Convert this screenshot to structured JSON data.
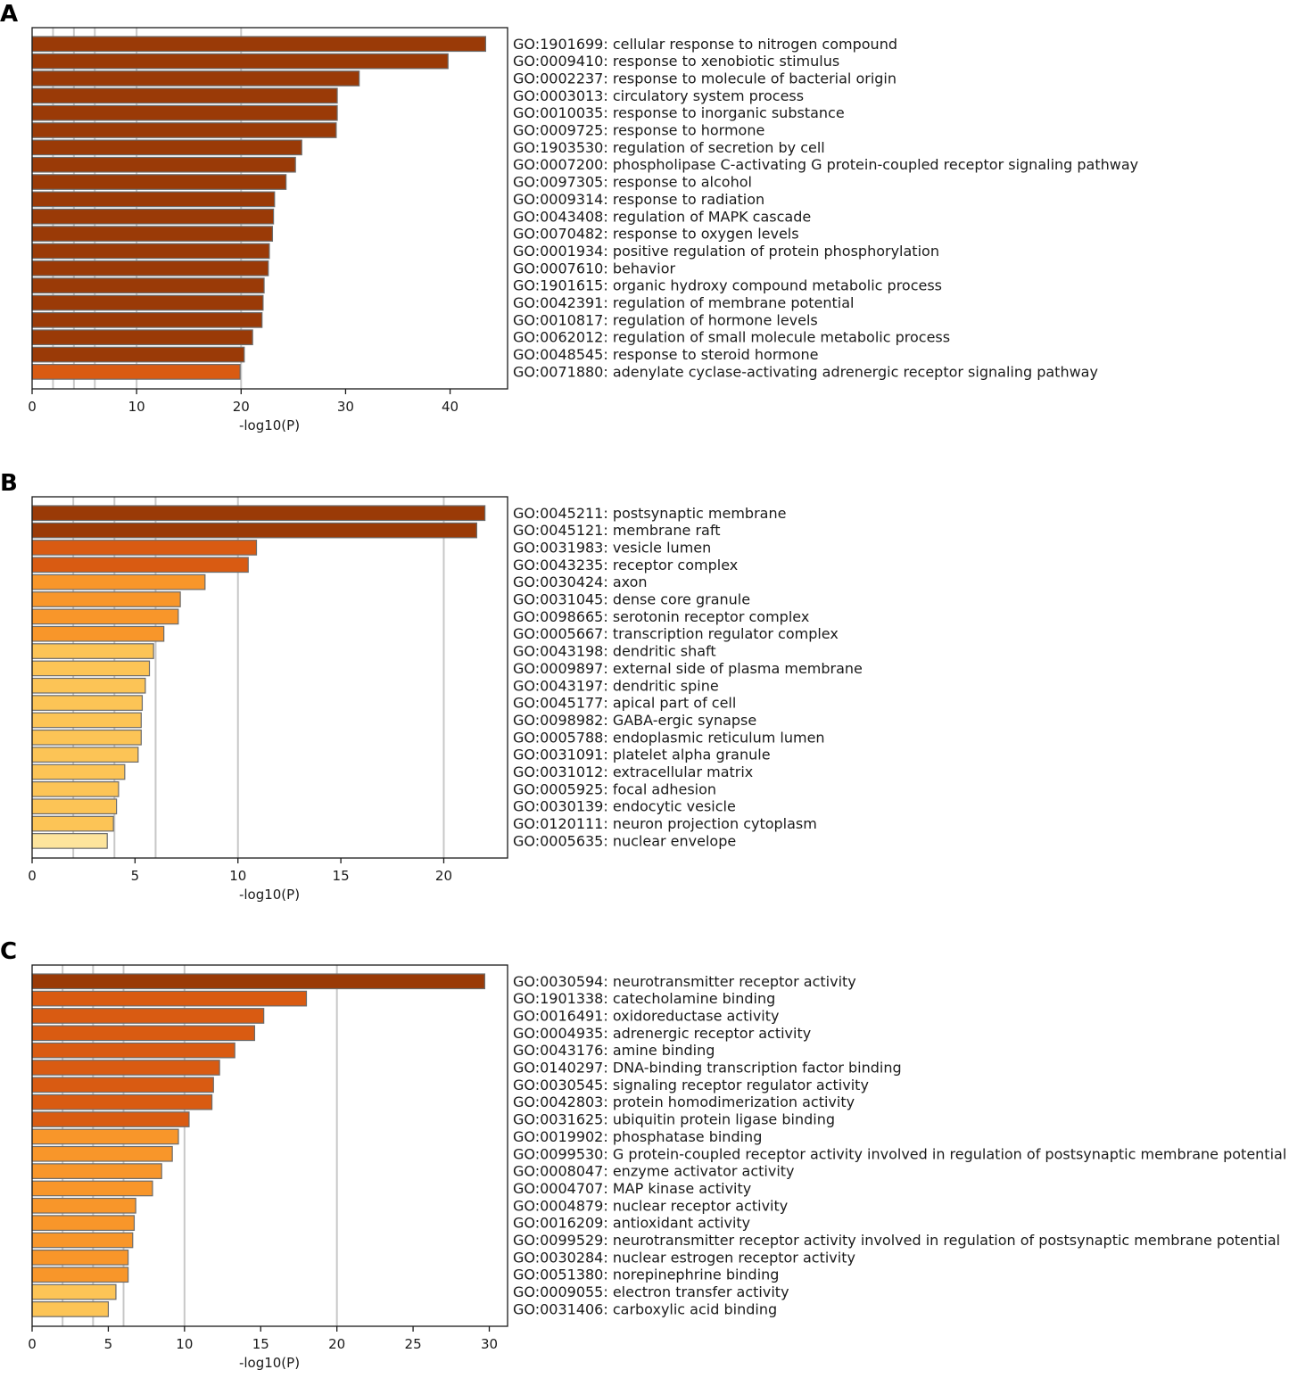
{
  "figure": {
    "xlabel": "-log10(P)",
    "color_scale": [
      "#9a3a07",
      "#d95b12",
      "#f8962a",
      "#fcc456",
      "#fde49c"
    ]
  },
  "chart_data": [
    {
      "type": "bar",
      "orientation": "horizontal",
      "panel": "A",
      "xlabel": "-log10(P)",
      "xlim": [
        0,
        45.5
      ],
      "xticks": [
        0,
        10,
        20,
        30,
        40
      ],
      "gridlines": [
        2,
        4,
        6,
        10,
        20
      ],
      "categories": [
        "GO:1901699: cellular response to nitrogen compound",
        "GO:0009410: response to xenobiotic stimulus",
        "GO:0002237: response to molecule of bacterial origin",
        "GO:0003013: circulatory system process",
        "GO:0010035: response to inorganic substance",
        "GO:0009725: response to hormone",
        "GO:1903530: regulation of secretion by cell",
        "GO:0007200: phospholipase C-activating G protein-coupled receptor signaling pathway",
        "GO:0097305: response to alcohol",
        "GO:0009314: response to radiation",
        "GO:0043408: regulation of MAPK cascade",
        "GO:0070482: response to oxygen levels",
        "GO:0001934: positive regulation of protein phosphorylation",
        "GO:0007610: behavior",
        "GO:1901615: organic hydroxy compound metabolic process",
        "GO:0042391: regulation of membrane potential",
        "GO:0010817: regulation of hormone levels",
        "GO:0062012: regulation of small molecule metabolic process",
        "GO:0048545: response to steroid hormone",
        "GO:0071880: adenylate cyclase-activating adrenergic receptor signaling pathway"
      ],
      "values": [
        43.4,
        39.8,
        31.3,
        29.2,
        29.2,
        29.1,
        25.8,
        25.2,
        24.3,
        23.2,
        23.1,
        23.0,
        22.7,
        22.6,
        22.2,
        22.1,
        22.0,
        21.1,
        20.3,
        19.9
      ],
      "colors": [
        "#9a3a07",
        "#9a3a07",
        "#9a3a07",
        "#9a3a07",
        "#9a3a07",
        "#9a3a07",
        "#9a3a07",
        "#9a3a07",
        "#9a3a07",
        "#9a3a07",
        "#9a3a07",
        "#9a3a07",
        "#9a3a07",
        "#9a3a07",
        "#9a3a07",
        "#9a3a07",
        "#9a3a07",
        "#9a3a07",
        "#9a3a07",
        "#d95b12"
      ]
    },
    {
      "type": "bar",
      "orientation": "horizontal",
      "panel": "B",
      "xlabel": "-log10(P)",
      "xlim": [
        0,
        23.1
      ],
      "xticks": [
        0,
        5,
        10,
        15,
        20
      ],
      "gridlines": [
        2,
        4,
        6,
        10,
        20
      ],
      "categories": [
        "GO:0045211: postsynaptic membrane",
        "GO:0045121: membrane raft",
        "GO:0031983: vesicle lumen",
        "GO:0043235: receptor complex",
        "GO:0030424: axon",
        "GO:0031045: dense core granule",
        "GO:0098665: serotonin receptor complex",
        "GO:0005667: transcription regulator complex",
        "GO:0043198: dendritic shaft",
        "GO:0009897: external side of plasma membrane",
        "GO:0043197: dendritic spine",
        "GO:0045177: apical part of cell",
        "GO:0098982: GABA-ergic synapse",
        "GO:0005788: endoplasmic reticulum lumen",
        "GO:0031091: platelet alpha granule",
        "GO:0031012: extracellular matrix",
        "GO:0005925: focal adhesion",
        "GO:0030139: endocytic vesicle",
        "GO:0120111: neuron projection cytoplasm",
        "GO:0005635: nuclear envelope"
      ],
      "values": [
        22.0,
        21.6,
        10.9,
        10.5,
        8.4,
        7.2,
        7.1,
        6.4,
        5.9,
        5.7,
        5.5,
        5.35,
        5.3,
        5.3,
        5.15,
        4.5,
        4.2,
        4.1,
        3.95,
        3.65
      ],
      "colors": [
        "#9a3a07",
        "#9a3a07",
        "#d95b12",
        "#d95b12",
        "#f8962a",
        "#f8962a",
        "#f8962a",
        "#f8962a",
        "#fcc456",
        "#fcc456",
        "#fcc456",
        "#fcc456",
        "#fcc456",
        "#fcc456",
        "#fcc456",
        "#fcc456",
        "#fcc456",
        "#fcc456",
        "#fcc456",
        "#fde49c"
      ]
    },
    {
      "type": "bar",
      "orientation": "horizontal",
      "panel": "C",
      "xlabel": "-log10(P)",
      "xlim": [
        0,
        31.2
      ],
      "xticks": [
        0,
        5,
        10,
        15,
        20,
        25,
        30
      ],
      "gridlines": [
        2,
        4,
        6,
        10,
        20
      ],
      "categories": [
        "GO:0030594: neurotransmitter receptor activity",
        "GO:1901338: catecholamine binding",
        "GO:0016491: oxidoreductase activity",
        "GO:0004935: adrenergic receptor activity",
        "GO:0043176: amine binding",
        "GO:0140297: DNA-binding transcription factor binding",
        "GO:0030545: signaling receptor regulator activity",
        "GO:0042803: protein homodimerization activity",
        "GO:0031625: ubiquitin protein ligase binding",
        "GO:0019902: phosphatase binding",
        "GO:0099530: G protein-coupled receptor activity involved in regulation of postsynaptic membrane potential",
        "GO:0008047: enzyme activator activity",
        "GO:0004707: MAP kinase activity",
        "GO:0004879: nuclear receptor activity",
        "GO:0016209: antioxidant activity",
        "GO:0099529: neurotransmitter receptor activity involved in regulation of postsynaptic membrane potential",
        "GO:0030284: nuclear estrogen receptor activity",
        "GO:0051380: norepinephrine binding",
        "GO:0009055: electron transfer activity",
        "GO:0031406: carboxylic acid binding"
      ],
      "values": [
        29.7,
        18.0,
        15.2,
        14.6,
        13.3,
        12.3,
        11.9,
        11.8,
        10.3,
        9.6,
        9.2,
        8.5,
        7.9,
        6.8,
        6.7,
        6.6,
        6.3,
        6.3,
        5.5,
        5.0
      ],
      "colors": [
        "#9a3a07",
        "#d95b12",
        "#d95b12",
        "#d95b12",
        "#d95b12",
        "#d95b12",
        "#d95b12",
        "#d95b12",
        "#d95b12",
        "#f8962a",
        "#f8962a",
        "#f8962a",
        "#f8962a",
        "#f8962a",
        "#f8962a",
        "#f8962a",
        "#f8962a",
        "#f8962a",
        "#fcc456",
        "#fcc456"
      ]
    }
  ]
}
